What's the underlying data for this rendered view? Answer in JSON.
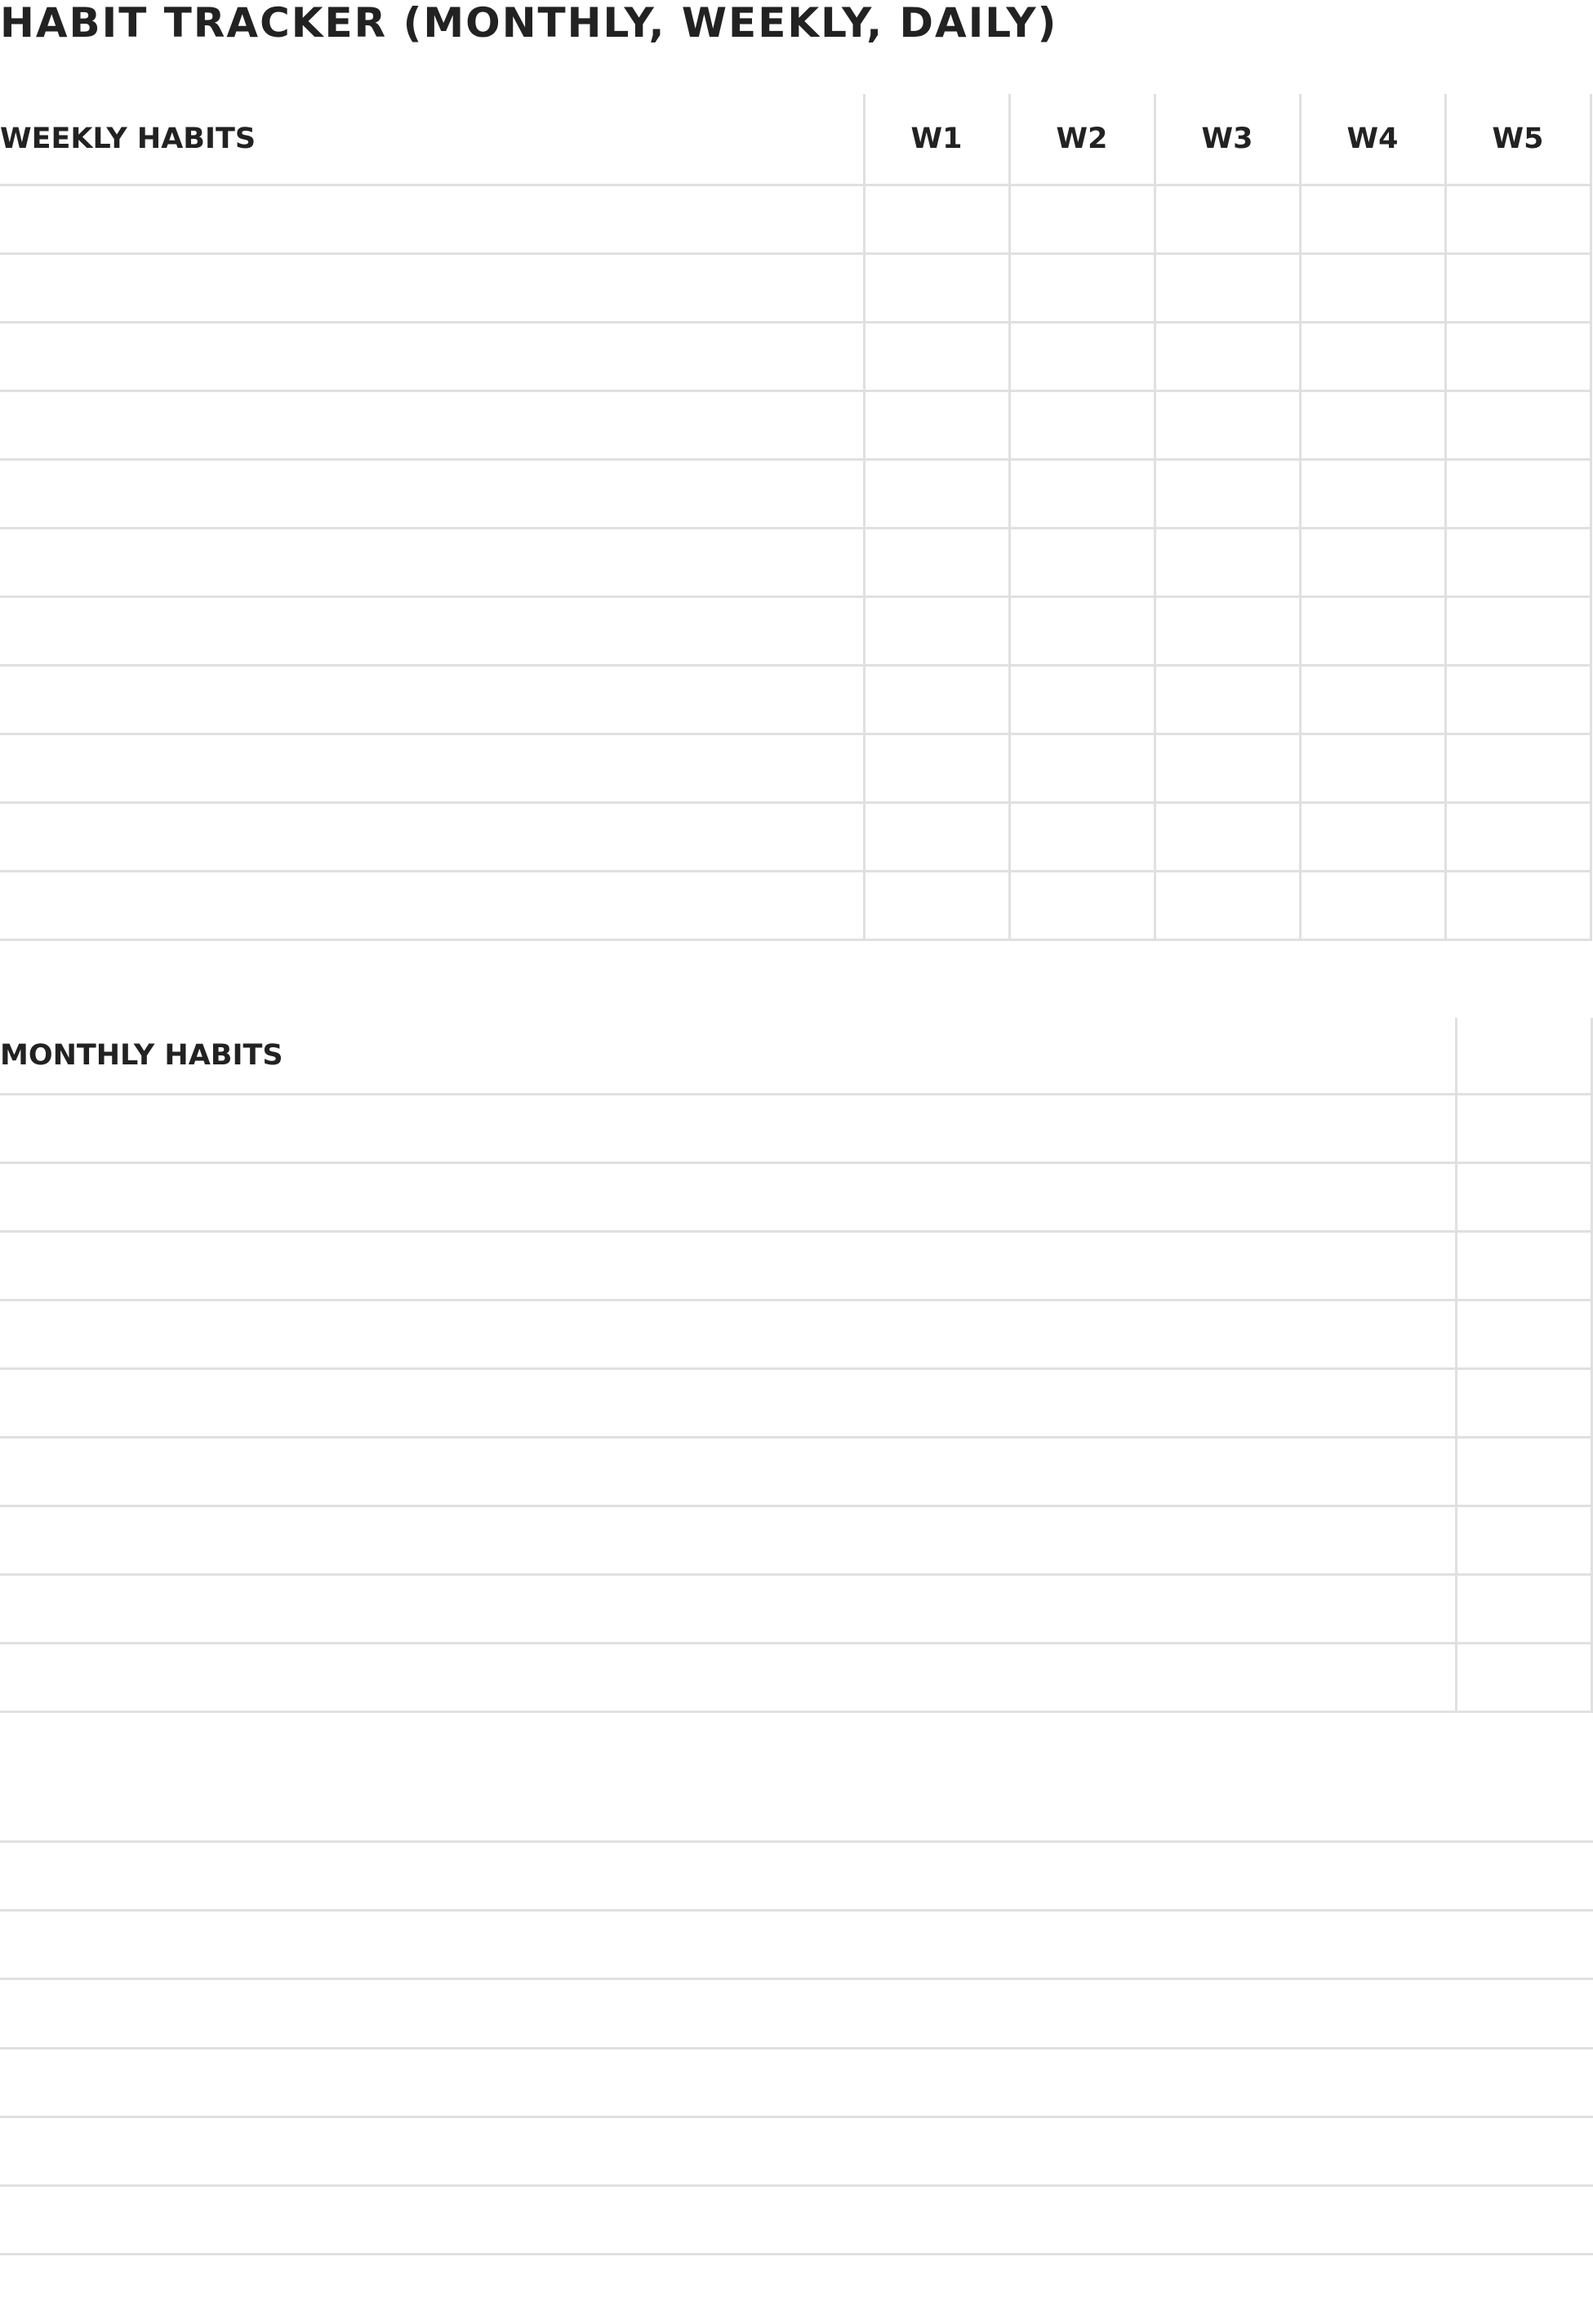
{
  "page": {
    "title": "HABIT TRACKER (MONTHLY, WEEKLY, DAILY)"
  },
  "weekly": {
    "header": "WEEKLY HABITS",
    "weeks": [
      "W1",
      "W2",
      "W3",
      "W4",
      "W5"
    ],
    "row_count": 11
  },
  "monthly": {
    "header": "MONTHLY HABITS",
    "row_count": 9
  },
  "daily": {
    "row_count": 7
  },
  "colors": {
    "text": "#222222",
    "grid_line": "#e0e0e0",
    "background": "#ffffff"
  }
}
